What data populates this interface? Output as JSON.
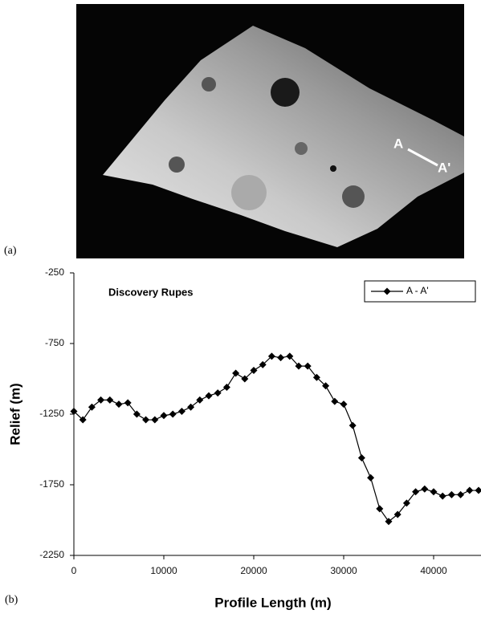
{
  "image_panel": {
    "label": "(a)",
    "point_a": "A",
    "point_a_prime": "A'"
  },
  "chart_data": {
    "type": "line",
    "panel_label": "(b)",
    "annotation": "Discovery Rupes",
    "xlabel": "Profile Length (m)",
    "ylabel": "Relief (m)",
    "x": [
      0,
      1000,
      2000,
      3000,
      4000,
      5000,
      6000,
      7000,
      8000,
      9000,
      10000,
      11000,
      12000,
      13000,
      14000,
      15000,
      16000,
      17000,
      18000,
      19000,
      20000,
      21000,
      22000,
      23000,
      24000,
      25000,
      26000,
      27000,
      28000,
      29000,
      30000,
      31000,
      32000,
      33000,
      34000,
      35000,
      36000,
      37000,
      38000,
      39000,
      40000,
      41000,
      42000,
      43000,
      44000,
      45000
    ],
    "series": [
      {
        "name": "A - A'",
        "color": "#000000",
        "values": [
          -1230,
          -1290,
          -1200,
          -1150,
          -1150,
          -1180,
          -1170,
          -1250,
          -1290,
          -1290,
          -1260,
          -1250,
          -1230,
          -1200,
          -1150,
          -1120,
          -1100,
          -1060,
          -960,
          -1000,
          -940,
          -900,
          -840,
          -850,
          -840,
          -910,
          -910,
          -990,
          -1050,
          -1160,
          -1180,
          -1330,
          -1560,
          -1700,
          -1920,
          -2010,
          -1960,
          -1880,
          -1800,
          -1780,
          -1800,
          -1830,
          -1820,
          -1820,
          -1790,
          -1790
        ]
      }
    ],
    "xlim": [
      0,
      45000
    ],
    "xticks": [
      0,
      10000,
      20000,
      30000,
      40000
    ],
    "ylim": [
      -2250,
      -250
    ],
    "yticks": [
      -250,
      -750,
      -1250,
      -1750,
      -2250
    ],
    "grid": false,
    "legend": "upper right"
  }
}
